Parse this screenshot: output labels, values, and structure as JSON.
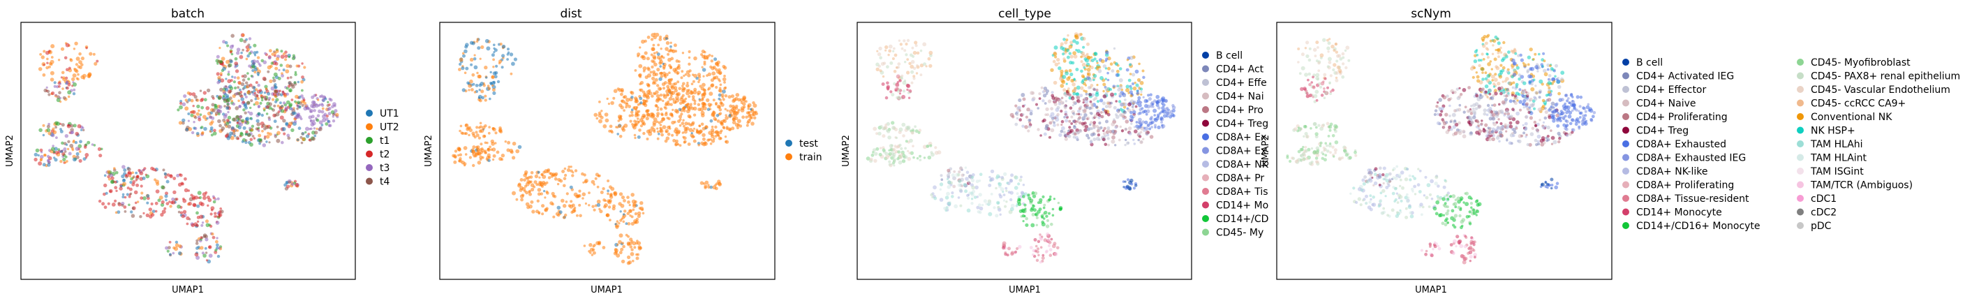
{
  "chart_data": [
    {
      "type": "scatter",
      "title": "batch",
      "xlabel": "UMAP1",
      "ylabel": "UMAP2",
      "legend": [
        "UT1",
        "UT2",
        "t1",
        "t2",
        "t3",
        "t4"
      ],
      "colors": [
        "#1f77b4",
        "#ff7f0e",
        "#2ca02c",
        "#d62728",
        "#9467bd",
        "#8c564b"
      ],
      "legend_position": "right",
      "point_color_mode": "mixed"
    },
    {
      "type": "scatter",
      "title": "dist",
      "xlabel": "UMAP1",
      "ylabel": "UMAP2",
      "legend": [
        "test",
        "train"
      ],
      "colors": [
        "#1f77b4",
        "#ff7f0e"
      ],
      "legend_position": "right",
      "point_color_mode": "dist"
    },
    {
      "type": "scatter",
      "title": "cell_type",
      "xlabel": "UMAP1",
      "ylabel": "UMAP2",
      "legend": [
        "B cell",
        "CD4+ Act",
        "CD4+ Effe",
        "CD4+ Nai",
        "CD4+ Pro",
        "CD4+ Treg",
        "CD8A+ Ex",
        "CD8A+ Ex",
        "CD8A+ NK",
        "CD8A+ Pr",
        "CD8A+ Tis",
        "CD14+ Mo",
        "CD14+/CD",
        "CD45- My"
      ],
      "colors": [
        "#023fa5",
        "#7d87b9",
        "#bec1d4",
        "#d6bcc0",
        "#bb7784",
        "#8e063b",
        "#4a6fe3",
        "#8595e1",
        "#b5bbe3",
        "#e6afb9",
        "#e07b91",
        "#d33f6a",
        "#11c638",
        "#8dd593"
      ],
      "legend_position": "right",
      "point_color_mode": "celltype"
    },
    {
      "type": "scatter",
      "title": "scNym",
      "xlabel": "UMAP1",
      "ylabel": "UMAP2",
      "legend": [
        "B cell",
        "CD4+ Activated IEG",
        "CD4+ Effector",
        "CD4+ Naive",
        "CD4+ Proliferating",
        "CD4+ Treg",
        "CD8A+ Exhausted",
        "CD8A+ Exhausted IEG",
        "CD8A+ NK-like",
        "CD8A+ Proliferating",
        "CD8A+ Tissue-resident",
        "CD14+ Monocyte",
        "CD14+/CD16+ Monocyte",
        "CD45- Myofibroblast",
        "CD45- PAX8+ renal epithelium",
        "CD45- Vascular Endothelium",
        "CD45- ccRCC CA9+",
        "Conventional NK",
        "NK HSP+",
        "TAM HLAhi",
        "TAM HLAint",
        "TAM ISGint",
        "TAM/TCR (Ambiguos)",
        "cDC1",
        "cDC2",
        "pDC"
      ],
      "colors": [
        "#023fa5",
        "#7d87b9",
        "#bec1d4",
        "#d6bcc0",
        "#bb7784",
        "#8e063b",
        "#4a6fe3",
        "#8595e1",
        "#b5bbe3",
        "#e6afb9",
        "#e07b91",
        "#d33f6a",
        "#11c638",
        "#8dd593",
        "#c6dec7",
        "#ead3c6",
        "#f0b98d",
        "#ef9708",
        "#0fcfc0",
        "#9cded6",
        "#d5eae7",
        "#f3e1eb",
        "#f6c4e1",
        "#f79cd4",
        "#7f7f7f",
        "#c7c7c7"
      ],
      "legend_position": "right",
      "legend_columns": 2,
      "point_color_mode": "celltype"
    }
  ],
  "colors": {
    "axis": "#000000",
    "background": "#ffffff",
    "hidden_axis_label": "#444444"
  }
}
